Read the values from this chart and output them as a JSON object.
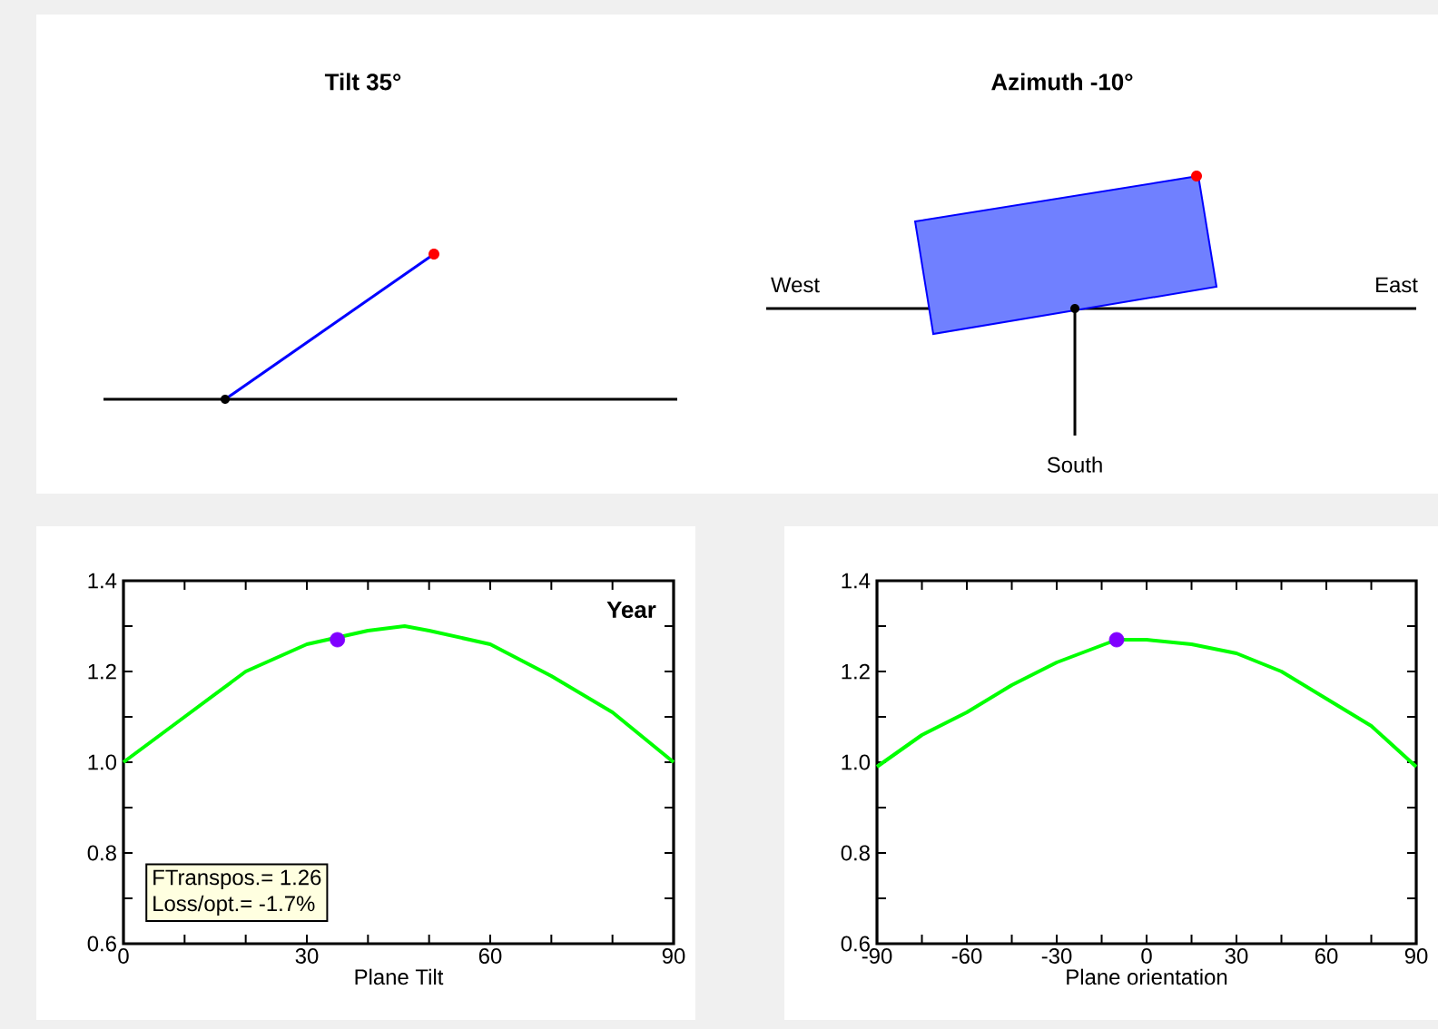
{
  "chart_data": [
    {
      "type": "other",
      "title": "Tilt 35°"
    },
    {
      "type": "other",
      "title": "Azimuth -10°",
      "annotations": [
        "West",
        "East",
        "South"
      ]
    },
    {
      "type": "line",
      "xlabel": "Plane Tilt",
      "xlim": [
        0,
        90
      ],
      "xticks": [
        0,
        30,
        60,
        90
      ],
      "ylim": [
        0.6,
        1.4
      ],
      "yticks": [
        0.6,
        0.8,
        {
          "value": 1.0,
          "label": "1.0"
        },
        1.2,
        1.4
      ],
      "annotations": [
        "Year",
        "FTranspos.= 1.26",
        "Loss/opt.= -1.7%"
      ],
      "series": [
        {
          "color": "#00ff00",
          "x": [
            0,
            10,
            20,
            30,
            40,
            46,
            50,
            60,
            70,
            80,
            90
          ],
          "values": [
            1.0,
            1.1,
            1.2,
            1.26,
            1.29,
            1.3,
            1.29,
            1.26,
            1.19,
            1.11,
            1.0
          ]
        },
        {
          "type": "scatter",
          "marker": "circle",
          "color": "#8000ff",
          "x": [
            35
          ],
          "values": [
            1.27
          ]
        }
      ]
    },
    {
      "type": "line",
      "xlabel": "Plane orientation",
      "xlim": [
        -90,
        90
      ],
      "xticks": [
        -90,
        -60,
        -30,
        0,
        30,
        60,
        90
      ],
      "ylim": [
        0.6,
        1.4
      ],
      "yticks": [
        0.6,
        0.8,
        {
          "value": 1.0,
          "label": "1.0"
        },
        1.2,
        1.4
      ],
      "series": [
        {
          "color": "#00ff00",
          "x": [
            -90,
            -75,
            -60,
            -45,
            -30,
            -10,
            0,
            15,
            30,
            45,
            60,
            75,
            90
          ],
          "values": [
            0.99,
            1.06,
            1.11,
            1.17,
            1.22,
            1.27,
            1.27,
            1.26,
            1.24,
            1.2,
            1.14,
            1.08,
            0.99
          ]
        },
        {
          "type": "scatter",
          "marker": "circle",
          "color": "#8000ff",
          "x": [
            -10
          ],
          "values": [
            1.27
          ]
        }
      ]
    }
  ]
}
